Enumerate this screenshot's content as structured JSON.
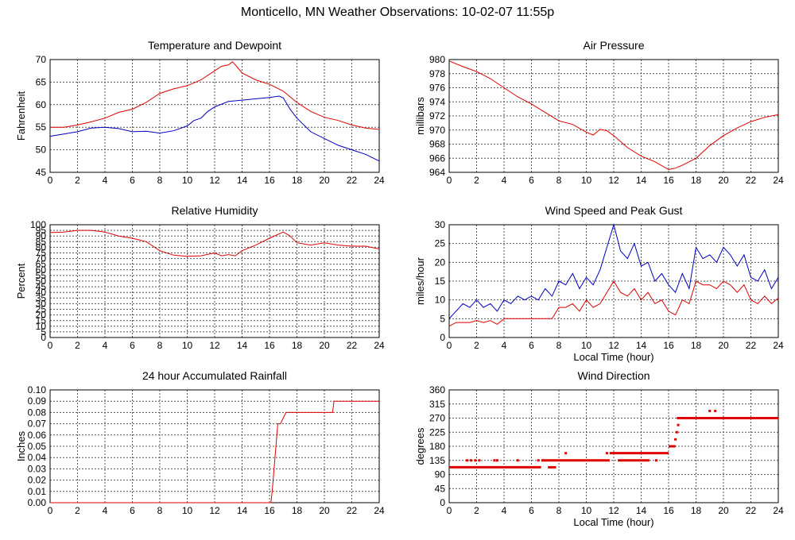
{
  "page": {
    "title": "Monticello, MN Weather Observations: 10-02-07 11:55p"
  },
  "chart_data": [
    {
      "type": "line",
      "title": "Temperature and Dewpoint",
      "ylabel": "Fahrenheit",
      "xlabel": "",
      "xlim": [
        0,
        24
      ],
      "ylim": [
        45,
        70
      ],
      "xticks": [
        0,
        2,
        4,
        6,
        8,
        10,
        12,
        14,
        16,
        18,
        20,
        22,
        24
      ],
      "yticks": [
        45,
        50,
        55,
        60,
        65,
        70
      ],
      "ytick_labels": [
        "45",
        "50",
        "55",
        "60",
        "65",
        "70"
      ],
      "grid": true,
      "series": [
        {
          "color": "#e00000",
          "x": [
            0,
            1,
            2,
            3,
            4,
            5,
            6,
            7,
            8,
            9,
            10,
            11,
            12,
            12.5,
            13,
            13.3,
            13.6,
            14,
            15,
            16,
            17,
            18,
            19,
            20,
            21,
            22,
            23,
            24
          ],
          "y": [
            55,
            55,
            55.5,
            56.2,
            57,
            58.3,
            59,
            60.5,
            62.5,
            63.5,
            64.2,
            65.5,
            67.5,
            68.5,
            68.8,
            69.5,
            68.5,
            67,
            65.5,
            64.5,
            63,
            60.5,
            58.5,
            57.2,
            56.5,
            55.5,
            54.8,
            54.5
          ]
        },
        {
          "color": "#0000c0",
          "x": [
            0,
            1,
            2,
            3,
            4,
            5,
            6,
            7,
            8,
            9,
            10,
            10.5,
            11,
            11.5,
            12,
            13,
            14,
            15,
            16,
            16.7,
            17,
            17.5,
            18,
            19,
            20,
            21,
            22,
            23,
            24
          ],
          "y": [
            53,
            53.5,
            54,
            54.8,
            55,
            54.7,
            54,
            54.1,
            53.7,
            54.2,
            55.3,
            56.5,
            57,
            58.5,
            59.5,
            60.7,
            61,
            61.3,
            61.6,
            61.9,
            61.5,
            59,
            57,
            54,
            52.5,
            51,
            50,
            49,
            47.5
          ]
        }
      ]
    },
    {
      "type": "line",
      "title": "Air Pressure",
      "ylabel": "millibars",
      "xlabel": "",
      "xlim": [
        0,
        24
      ],
      "ylim": [
        964,
        980
      ],
      "xticks": [
        0,
        2,
        4,
        6,
        8,
        10,
        12,
        14,
        16,
        18,
        20,
        22,
        24
      ],
      "yticks": [
        964,
        966,
        968,
        970,
        972,
        974,
        976,
        978,
        980
      ],
      "ytick_labels": [
        "964",
        "966",
        "968",
        "970",
        "972",
        "974",
        "976",
        "978",
        "980"
      ],
      "grid": true,
      "series": [
        {
          "color": "#e00000",
          "x": [
            0,
            1,
            2,
            3,
            4,
            5,
            6,
            7,
            8,
            9,
            10,
            10.5,
            11,
            11.5,
            12,
            13,
            14,
            15,
            16,
            16.5,
            17,
            18,
            19,
            20,
            21,
            22,
            23,
            24
          ],
          "y": [
            979.8,
            979,
            978.3,
            977.3,
            976,
            974.7,
            973.7,
            972.5,
            971.3,
            970.8,
            969.7,
            969.3,
            970.1,
            969.9,
            969.2,
            967.5,
            966.3,
            965.5,
            964.4,
            964.6,
            965,
            966,
            967.8,
            969.2,
            970.3,
            971.2,
            971.8,
            972.2
          ]
        }
      ]
    },
    {
      "type": "line",
      "title": "Relative Humidity",
      "ylabel": "Percent",
      "xlabel": "",
      "xlim": [
        0,
        24
      ],
      "ylim": [
        0,
        100
      ],
      "xticks": [
        0,
        2,
        4,
        6,
        8,
        10,
        12,
        14,
        16,
        18,
        20,
        22,
        24
      ],
      "yticks": [
        0,
        5,
        10,
        15,
        20,
        25,
        30,
        35,
        40,
        45,
        50,
        55,
        60,
        65,
        70,
        75,
        80,
        85,
        90,
        95,
        100
      ],
      "ytick_labels": [
        "0",
        "5",
        "10",
        "15",
        "20",
        "25",
        "30",
        "35",
        "40",
        "45",
        "50",
        "55",
        "60",
        "65",
        "70",
        "75",
        "80",
        "85",
        "90",
        "95",
        "100"
      ],
      "grid": true,
      "series": [
        {
          "color": "#e00000",
          "x": [
            0,
            1,
            2,
            3,
            4,
            5,
            6,
            7,
            8,
            9,
            10,
            11,
            12,
            12.5,
            13,
            13.5,
            14,
            15,
            16,
            17,
            17.5,
            18,
            19,
            20,
            21,
            22,
            23,
            24
          ],
          "y": [
            93,
            93.5,
            95,
            95,
            93.5,
            90,
            88,
            85,
            77,
            73,
            72,
            72.5,
            75,
            72.5,
            73.5,
            72.5,
            77,
            82,
            88,
            93.5,
            90,
            84,
            82,
            84,
            82,
            81,
            81,
            78.5
          ]
        }
      ]
    },
    {
      "type": "line",
      "title": "Wind Speed and Peak Gust",
      "ylabel": "miles/hour",
      "xlabel": "Local Time (hour)",
      "xlim": [
        0,
        24
      ],
      "ylim": [
        0,
        30
      ],
      "xticks": [
        0,
        2,
        4,
        6,
        8,
        10,
        12,
        14,
        16,
        18,
        20,
        22,
        24
      ],
      "yticks": [
        0,
        5,
        10,
        15,
        20,
        25,
        30
      ],
      "ytick_labels": [
        "0",
        "5",
        "10",
        "15",
        "20",
        "25",
        "30"
      ],
      "grid": true,
      "series": [
        {
          "color": "#0000c0",
          "x": [
            0,
            0.5,
            1,
            1.5,
            2,
            2.5,
            3,
            3.5,
            4,
            4.5,
            5,
            5.5,
            6,
            6.5,
            7,
            7.5,
            8,
            8.5,
            9,
            9.5,
            10,
            10.5,
            11,
            11.5,
            12,
            12.5,
            13,
            13.5,
            14,
            14.5,
            15,
            15.5,
            16,
            16.5,
            17,
            17.5,
            18,
            18.5,
            19,
            19.5,
            20,
            20.5,
            21,
            21.5,
            22,
            22.5,
            23,
            23.5,
            24
          ],
          "y": [
            5,
            7,
            9,
            8,
            10,
            8,
            9,
            7,
            10,
            9,
            11,
            10,
            11,
            10,
            13,
            11,
            15,
            14,
            17,
            13,
            16,
            14,
            18,
            24,
            30,
            23,
            21,
            25,
            19,
            20,
            15,
            17,
            14,
            12,
            17,
            13,
            24,
            21,
            22,
            20,
            24,
            22,
            19,
            22,
            16,
            15,
            18,
            13,
            16
          ]
        },
        {
          "color": "#e00000",
          "x": [
            0,
            0.5,
            1,
            1.5,
            2,
            2.5,
            3,
            3.5,
            4,
            4.5,
            5,
            5.5,
            6,
            6.5,
            7,
            7.5,
            8,
            8.5,
            9,
            9.5,
            10,
            10.5,
            11,
            11.5,
            12,
            12.5,
            13,
            13.5,
            14,
            14.5,
            15,
            15.5,
            16,
            16.5,
            17,
            17.5,
            18,
            18.5,
            19,
            19.5,
            20,
            20.5,
            21,
            21.5,
            22,
            22.5,
            23,
            23.5,
            24
          ],
          "y": [
            3,
            4,
            4,
            4,
            4.5,
            4,
            4.5,
            3.5,
            5,
            5,
            5,
            5,
            5,
            5,
            5,
            5,
            8,
            8,
            9,
            7,
            10,
            8,
            9,
            12,
            15,
            12,
            11,
            13,
            10,
            12,
            9,
            10,
            7,
            6,
            10,
            9,
            15,
            14,
            14,
            13,
            15,
            14,
            12,
            14,
            10,
            9,
            11,
            9,
            10.5
          ]
        }
      ]
    },
    {
      "type": "line",
      "title": "24 hour Accumulated Rainfall",
      "ylabel": "Inches",
      "xlabel": "",
      "xlim": [
        0,
        24
      ],
      "ylim": [
        0,
        0.1
      ],
      "xticks": [
        0,
        2,
        4,
        6,
        8,
        10,
        12,
        14,
        16,
        18,
        20,
        22,
        24
      ],
      "yticks": [
        0,
        0.01,
        0.02,
        0.03,
        0.04,
        0.05,
        0.06,
        0.07,
        0.08,
        0.09,
        0.1
      ],
      "ytick_labels": [
        "0.00",
        "0.01",
        "0.02",
        "0.03",
        "0.04",
        "0.05",
        "0.06",
        "0.07",
        "0.08",
        "0.09",
        "0.10"
      ],
      "grid": true,
      "series": [
        {
          "color": "#e00000",
          "x": [
            0,
            16.1,
            16.2,
            16.4,
            16.6,
            16.8,
            17.0,
            17.2,
            17.5,
            20.6,
            20.7,
            24
          ],
          "y": [
            0,
            0,
            0.01,
            0.04,
            0.07,
            0.07,
            0.075,
            0.08,
            0.08,
            0.08,
            0.09,
            0.09
          ]
        }
      ]
    },
    {
      "type": "scatter",
      "title": "Wind Direction",
      "ylabel": "degrees",
      "xlabel": "Local Time (hour)",
      "xlim": [
        0,
        24
      ],
      "ylim": [
        0,
        360
      ],
      "xticks": [
        0,
        2,
        4,
        6,
        8,
        10,
        12,
        14,
        16,
        18,
        20,
        22,
        24
      ],
      "yticks": [
        0,
        45,
        90,
        135,
        180,
        225,
        270,
        315,
        360
      ],
      "ytick_labels": [
        "0",
        "45",
        "90",
        "135",
        "180",
        "225",
        "270",
        "315",
        "360"
      ],
      "grid": true,
      "series": [
        {
          "color": "#e00000",
          "segments": [
            {
              "x0": 0,
              "x1": 6.7,
              "y": 113
            },
            {
              "x0": 7.2,
              "x1": 7.8,
              "y": 113
            },
            {
              "x0": 6.8,
              "x1": 11.7,
              "y": 135
            },
            {
              "x0": 12.3,
              "x1": 14.6,
              "y": 135
            },
            {
              "x0": 11.7,
              "x1": 16.0,
              "y": 158
            },
            {
              "x0": 16.0,
              "x1": 16.5,
              "y": 180
            },
            {
              "x0": 16.6,
              "x1": 24,
              "y": 270
            }
          ],
          "points": [
            [
              1.3,
              135
            ],
            [
              1.6,
              135
            ],
            [
              1.9,
              135
            ],
            [
              2.2,
              135
            ],
            [
              3.3,
              135
            ],
            [
              3.5,
              135
            ],
            [
              5.0,
              135
            ],
            [
              6.5,
              135
            ],
            [
              6.8,
              135
            ],
            [
              8.5,
              158
            ],
            [
              11.5,
              158
            ],
            [
              15.1,
              135
            ],
            [
              16.5,
              202
            ],
            [
              16.6,
              225
            ],
            [
              16.7,
              248
            ],
            [
              19.0,
              293
            ],
            [
              19.4,
              293
            ]
          ]
        }
      ]
    }
  ]
}
